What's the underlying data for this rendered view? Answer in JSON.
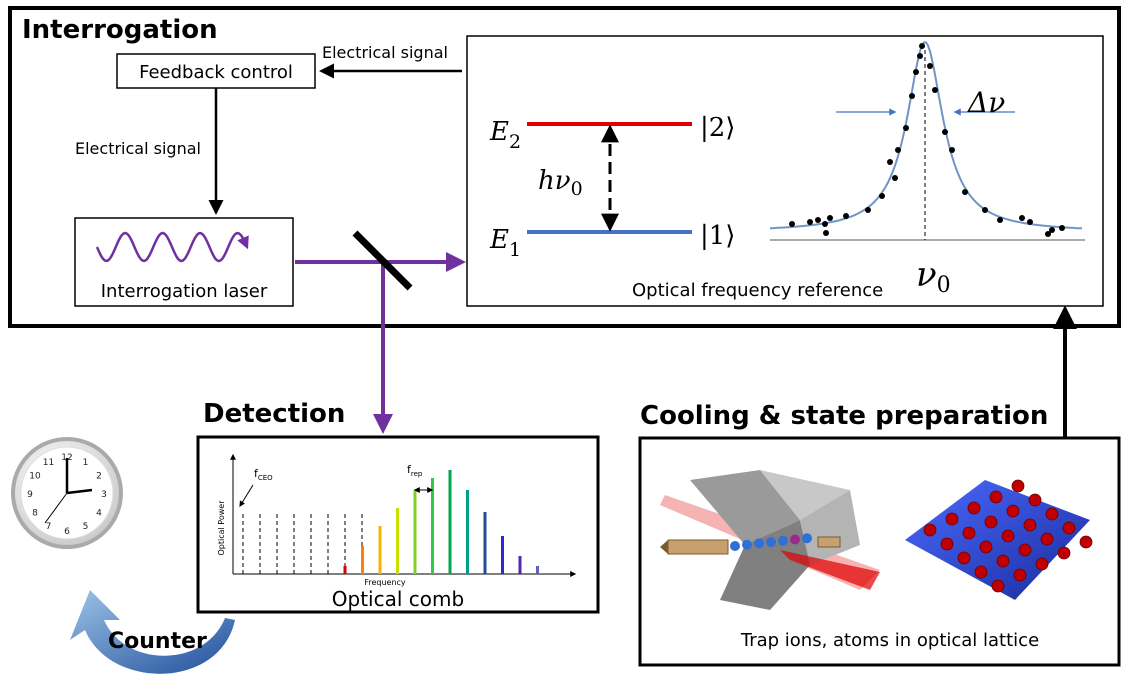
{
  "interrogation": {
    "title": "Interrogation",
    "feedback_box": "Feedback control",
    "signal_top": "Electrical signal",
    "signal_left": "Electrical signal",
    "laser_box": "Interrogation laser"
  },
  "reference": {
    "caption": "Optical frequency reference",
    "upper_level": {
      "symbol": "E",
      "sub": "2",
      "ket": "|2⟩"
    },
    "lower_level": {
      "symbol": "E",
      "sub": "1",
      "ket": "|1⟩"
    },
    "transition": {
      "symbol": "hν",
      "sub": "0"
    },
    "linewidth": "Δν",
    "center": {
      "symbol": "ν",
      "sub": "0"
    }
  },
  "detection": {
    "title": "Detection",
    "caption": "Optical comb",
    "y_axis": "Optical Power",
    "x_axis": "Frequency",
    "offset": {
      "symbol": "f",
      "sub": "CEO"
    },
    "spacing": {
      "symbol": "f",
      "sub": "rep"
    }
  },
  "cooling": {
    "title": "Cooling & state preparation",
    "caption": "Trap ions, atoms in optical lattice"
  },
  "counter": {
    "label": "Counter",
    "numerals": [
      "12",
      "1",
      "2",
      "3",
      "4",
      "5",
      "6",
      "7",
      "8",
      "9",
      "10",
      "11"
    ]
  }
}
